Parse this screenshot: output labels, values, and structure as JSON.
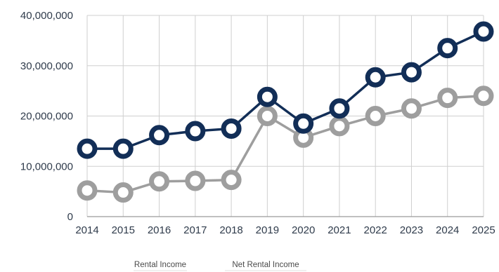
{
  "chart_data": {
    "type": "line",
    "title": "",
    "xlabel": "",
    "ylabel": "",
    "categories": [
      "2014",
      "2015",
      "2016",
      "2017",
      "2018",
      "2019",
      "2020",
      "2021",
      "2022",
      "2023",
      "2024",
      "2025"
    ],
    "ylim": [
      0,
      40000000
    ],
    "yticks": [
      0,
      10000000,
      20000000,
      30000000,
      40000000
    ],
    "ytick_labels": [
      "0",
      "10,000,000",
      "20,000,000",
      "30,000,000",
      "40,000,000"
    ],
    "grid": true,
    "legend_position": "bottom-left",
    "series": [
      {
        "name": "Rental Income",
        "color": "#122e57",
        "values": [
          13500000,
          13500000,
          16200000,
          17000000,
          17500000,
          23800000,
          18500000,
          21500000,
          27700000,
          28700000,
          33500000,
          36800000
        ]
      },
      {
        "name": "Net Rental Income",
        "color": "#9e9e9e",
        "values": [
          5200000,
          4800000,
          7000000,
          7100000,
          7300000,
          20000000,
          15700000,
          18000000,
          20000000,
          21500000,
          23600000,
          24000000
        ]
      }
    ]
  }
}
